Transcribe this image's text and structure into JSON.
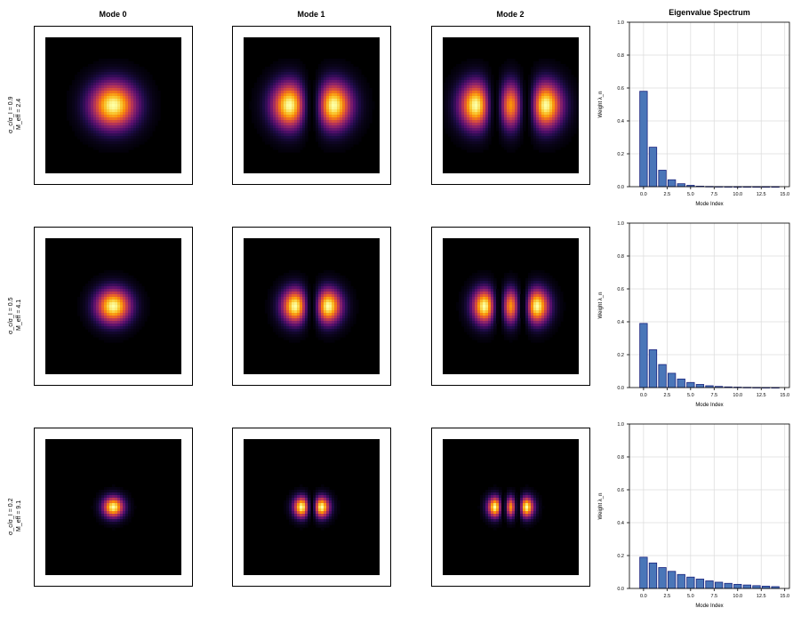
{
  "column_titles": [
    "Mode 0",
    "Mode 1",
    "Mode 2"
  ],
  "spectrum_title": "Eigenvalue Spectrum",
  "rows": [
    {
      "label_line1": "σ_c/σ_I = 0.9",
      "label_line2": "M_eff = 2.4",
      "ratio": 0.9,
      "M_eff": 2.4,
      "mode_sigma": 1.0
    },
    {
      "label_line1": "σ_c/σ_I = 0.5",
      "label_line2": "M_eff = 4.1",
      "ratio": 0.5,
      "M_eff": 4.1,
      "mode_sigma": 0.75
    },
    {
      "label_line1": "σ_c/σ_I = 0.2",
      "label_line2": "M_eff = 9.1",
      "ratio": 0.2,
      "M_eff": 9.1,
      "mode_sigma": 0.45
    }
  ],
  "chart_data": [
    {
      "type": "bar",
      "xlabel": "Mode Index",
      "ylabel": "Weight λ_n",
      "xlim": [
        -1.5,
        15.5
      ],
      "ylim": [
        0,
        1.0
      ],
      "xticks": [
        "0.0",
        "2.5",
        "5.0",
        "7.5",
        "10.0",
        "12.5",
        "15.0"
      ],
      "yticks": [
        "0.0",
        "0.2",
        "0.4",
        "0.6",
        "0.8",
        "1.0"
      ],
      "grid": true,
      "x": [
        0,
        1,
        2,
        3,
        4,
        5,
        6,
        7,
        8,
        9,
        10,
        11,
        12,
        13,
        14
      ],
      "values": [
        0.58,
        0.24,
        0.1,
        0.042,
        0.018,
        0.008,
        0.003,
        0.0015,
        0.0007,
        0.0003,
        0.0001,
        5e-05,
        2e-05,
        1e-05,
        5e-06
      ]
    },
    {
      "type": "bar",
      "xlabel": "Mode Index",
      "ylabel": "Weight λ_n",
      "xlim": [
        -1.5,
        15.5
      ],
      "ylim": [
        0,
        1.0
      ],
      "xticks": [
        "0.0",
        "2.5",
        "5.0",
        "7.5",
        "10.0",
        "12.5",
        "15.0"
      ],
      "yticks": [
        "0.0",
        "0.2",
        "0.4",
        "0.6",
        "0.8",
        "1.0"
      ],
      "grid": true,
      "x": [
        0,
        1,
        2,
        3,
        4,
        5,
        6,
        7,
        8,
        9,
        10,
        11,
        12,
        13,
        14
      ],
      "values": [
        0.39,
        0.23,
        0.14,
        0.087,
        0.052,
        0.031,
        0.019,
        0.011,
        0.007,
        0.004,
        0.0025,
        0.0015,
        0.0009,
        0.0005,
        0.0003
      ]
    },
    {
      "type": "bar",
      "xlabel": "Mode Index",
      "ylabel": "Weight λ_n",
      "xlim": [
        -1.5,
        15.5
      ],
      "ylim": [
        0,
        1.0
      ],
      "xticks": [
        "0.0",
        "2.5",
        "5.0",
        "7.5",
        "10.0",
        "12.5",
        "15.0"
      ],
      "yticks": [
        "0.0",
        "0.2",
        "0.4",
        "0.6",
        "0.8",
        "1.0"
      ],
      "grid": true,
      "x": [
        0,
        1,
        2,
        3,
        4,
        5,
        6,
        7,
        8,
        9,
        10,
        11,
        12,
        13,
        14
      ],
      "values": [
        0.19,
        0.155,
        0.127,
        0.104,
        0.085,
        0.069,
        0.057,
        0.046,
        0.038,
        0.031,
        0.025,
        0.021,
        0.017,
        0.014,
        0.011
      ]
    }
  ],
  "colors": {
    "bar_fill": "#4a76b8",
    "bar_edge": "#1a237e",
    "grid": "#dddddd",
    "mode_background": "#000000"
  },
  "colormap": "inferno"
}
